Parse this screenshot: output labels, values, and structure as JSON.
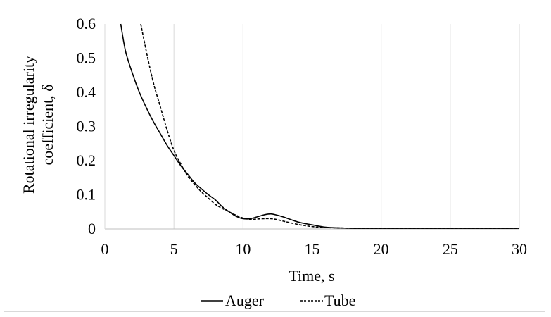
{
  "chart_data": {
    "type": "line",
    "title": "",
    "xlabel": "Time, s",
    "ylabel": [
      "Rotational irregularity",
      "coefficient, δ"
    ],
    "xlim": [
      0,
      30
    ],
    "ylim": [
      0,
      0.6
    ],
    "x_ticks": [
      0,
      5,
      10,
      15,
      20,
      25,
      30
    ],
    "x_tick_labels": [
      "0",
      "5",
      "10",
      "15",
      "20",
      "25",
      "30"
    ],
    "y_ticks": [
      0,
      0.1,
      0.2,
      0.3,
      0.4,
      0.5,
      0.6
    ],
    "y_tick_labels": [
      "0",
      "0.1",
      "0.2",
      "0.3",
      "0.4",
      "0.5",
      "0.6"
    ],
    "grid": "vertical",
    "legend_position": "bottom",
    "series": [
      {
        "name": "Auger",
        "style": "solid",
        "color": "#000000",
        "x": [
          1.15,
          1.5,
          2,
          2.5,
          3,
          3.5,
          4,
          4.5,
          5,
          5.5,
          6,
          6.5,
          7,
          7.5,
          8,
          8.5,
          9,
          9.5,
          10,
          10.5,
          11,
          11.5,
          12,
          12.5,
          13,
          14,
          15,
          16,
          17,
          18,
          20,
          25,
          30
        ],
        "y": [
          0.6,
          0.52,
          0.455,
          0.4,
          0.355,
          0.315,
          0.28,
          0.245,
          0.215,
          0.185,
          0.16,
          0.135,
          0.117,
          0.1,
          0.085,
          0.065,
          0.05,
          0.037,
          0.03,
          0.03,
          0.035,
          0.041,
          0.044,
          0.04,
          0.034,
          0.02,
          0.012,
          0.005,
          0.003,
          0.002,
          0.002,
          0.002,
          0.002
        ]
      },
      {
        "name": "Tube",
        "style": "dashed",
        "color": "#000000",
        "x": [
          2.6,
          3,
          3.5,
          4,
          4.5,
          5,
          5.5,
          6,
          6.5,
          7,
          7.5,
          8,
          8.5,
          9,
          9.5,
          10,
          10.5,
          11,
          11.5,
          12,
          12.5,
          13,
          14,
          15,
          16,
          17,
          18,
          20,
          25,
          30
        ],
        "y": [
          0.6,
          0.52,
          0.43,
          0.36,
          0.29,
          0.23,
          0.19,
          0.155,
          0.13,
          0.108,
          0.09,
          0.072,
          0.06,
          0.05,
          0.04,
          0.032,
          0.028,
          0.029,
          0.03,
          0.03,
          0.027,
          0.022,
          0.013,
          0.007,
          0.004,
          0.003,
          0.002,
          0.002,
          0.002,
          0.002
        ]
      }
    ]
  }
}
